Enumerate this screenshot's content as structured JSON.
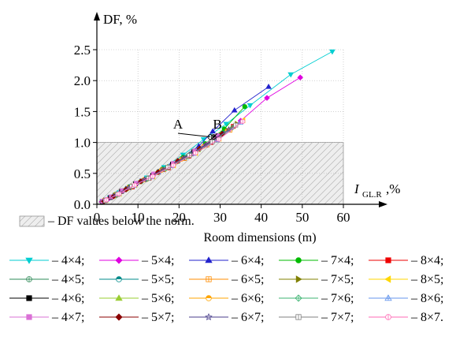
{
  "chart_data": {
    "type": "scatter",
    "y_axis_label": "DF, %",
    "x_axis_label_main": "I",
    "x_axis_label_sub": "GL.R",
    "x_axis_label_unit": ",%",
    "xlim": [
      0,
      60
    ],
    "ylim": [
      0,
      2.5
    ],
    "x_ticks": [
      "0",
      "10",
      "20",
      "30",
      "40",
      "50",
      "60"
    ],
    "y_ticks": [
      "0.0",
      "0.5",
      "1.0",
      "1.5",
      "2.0",
      "2.5"
    ],
    "norm_region": {
      "x_max": 60,
      "y_max": 1.0,
      "hatched": true
    },
    "annotations": [
      {
        "label": "A",
        "x": 27.6,
        "y": 1.09
      },
      {
        "label": "B",
        "x": 28.4,
        "y": 1.09
      }
    ],
    "norm_legend_text": "– DF values below the norm.",
    "legend_title": "Room dimensions (m)",
    "series": [
      {
        "name": "– 4×4;",
        "color": "#00ced1",
        "marker": "tri-down",
        "x": [
          1.4,
          3.2,
          5.5,
          8.5,
          12.2,
          16.4,
          21,
          26,
          31.5,
          37.3,
          47.2,
          57.3
        ],
        "y": [
          0.05,
          0.11,
          0.19,
          0.29,
          0.43,
          0.6,
          0.8,
          1.05,
          1.3,
          1.6,
          2.1,
          2.47
        ]
      },
      {
        "name": "– 5×4;",
        "color": "#e000e0",
        "marker": "diamond",
        "x": [
          1.2,
          3,
          5.8,
          9.2,
          13.4,
          18.2,
          23.4,
          29,
          35,
          41.4,
          49.5
        ],
        "y": [
          0.04,
          0.1,
          0.2,
          0.31,
          0.46,
          0.64,
          0.82,
          1.08,
          1.35,
          1.72,
          2.05
        ]
      },
      {
        "name": "– 6×4;",
        "color": "#2222cc",
        "marker": "tri-up",
        "x": [
          1.6,
          4,
          7,
          10.5,
          14.8,
          19.6,
          24.8,
          28.2,
          33.5,
          41.8
        ],
        "y": [
          0.06,
          0.14,
          0.25,
          0.37,
          0.52,
          0.7,
          0.94,
          1.18,
          1.52,
          1.9
        ]
      },
      {
        "name": "– 7×4;",
        "color": "#00bb00",
        "marker": "circle",
        "x": [
          1.8,
          4.5,
          7.8,
          11.6,
          16,
          21,
          26.4,
          31,
          36
        ],
        "y": [
          0.06,
          0.16,
          0.28,
          0.4,
          0.57,
          0.76,
          0.98,
          1.22,
          1.58
        ]
      },
      {
        "name": "– 8×4;",
        "color": "#ee0000",
        "marker": "square",
        "x": [
          2,
          5,
          8.6,
          12.7,
          17.4,
          22.4,
          27.8,
          33.2
        ],
        "y": [
          0.06,
          0.16,
          0.28,
          0.42,
          0.59,
          0.78,
          1,
          1.26
        ]
      },
      {
        "name": "– 4×5;",
        "color": "#2e8b57",
        "marker": "circle-plus",
        "x": [
          1.5,
          3.6,
          6.4,
          9.8,
          13.9,
          18.6,
          23.6,
          29.2
        ],
        "y": [
          0.05,
          0.12,
          0.22,
          0.34,
          0.49,
          0.66,
          0.86,
          1.1
        ]
      },
      {
        "name": "– 5×5;",
        "color": "#008b8b",
        "marker": "circle-half",
        "x": [
          1.7,
          4.2,
          7.2,
          10.8,
          15,
          19.8,
          25,
          30.6
        ],
        "y": [
          0.05,
          0.14,
          0.25,
          0.37,
          0.53,
          0.7,
          0.9,
          1.15
        ]
      },
      {
        "name": "– 6×5;",
        "color": "#ff8c00",
        "marker": "square-plus",
        "x": [
          1.9,
          4.6,
          7.9,
          11.8,
          16.3,
          21.3,
          26.8,
          32.4
        ],
        "y": [
          0.06,
          0.15,
          0.27,
          0.4,
          0.56,
          0.74,
          0.96,
          1.2
        ]
      },
      {
        "name": "– 7×5;",
        "color": "#808000",
        "marker": "tri-right",
        "x": [
          2.1,
          5.1,
          8.7,
          12.9,
          17.6,
          22.8,
          28.4,
          34.1
        ],
        "y": [
          0.06,
          0.16,
          0.29,
          0.42,
          0.6,
          0.79,
          1.02,
          1.3
        ]
      },
      {
        "name": "– 8×5;",
        "color": "#ffd700",
        "marker": "tri-left",
        "x": [
          2.3,
          5.5,
          9.3,
          13.7,
          18.7,
          24.1,
          29.8,
          35.6
        ],
        "y": [
          0.07,
          0.17,
          0.31,
          0.45,
          0.63,
          0.83,
          1.06,
          1.36
        ]
      },
      {
        "name": "– 4×6;",
        "color": "#000000",
        "marker": "square",
        "x": [
          1.3,
          3.3,
          6,
          9.4,
          13.6,
          18.4,
          23.6,
          28.8
        ],
        "y": [
          0.04,
          0.11,
          0.21,
          0.33,
          0.47,
          0.65,
          0.85,
          1.08
        ]
      },
      {
        "name": "– 5×6;",
        "color": "#9acd32",
        "marker": "tri-up",
        "x": [
          1.6,
          3.9,
          6.9,
          10.4,
          14.6,
          19.4,
          24.6,
          30.1
        ],
        "y": [
          0.05,
          0.13,
          0.24,
          0.36,
          0.51,
          0.69,
          0.88,
          1.13
        ]
      },
      {
        "name": "– 6×6;",
        "color": "#ffa500",
        "marker": "circle-half",
        "x": [
          1.8,
          4.4,
          7.6,
          11.3,
          15.7,
          20.6,
          26,
          31.7
        ],
        "y": [
          0.06,
          0.14,
          0.26,
          0.39,
          0.55,
          0.73,
          0.94,
          1.19
        ]
      },
      {
        "name": "– 7×6;",
        "color": "#3cb371",
        "marker": "diamond-plus",
        "x": [
          2,
          4.8,
          8.2,
          12.2,
          16.8,
          21.9,
          27.4,
          33
        ],
        "y": [
          0.06,
          0.15,
          0.28,
          0.41,
          0.58,
          0.77,
          0.99,
          1.24
        ]
      },
      {
        "name": "– 8×6;",
        "color": "#6495ed",
        "marker": "tri-up-plus",
        "x": [
          2.2,
          5.3,
          9,
          13.3,
          18.2,
          23.5,
          29.2,
          34.9
        ],
        "y": [
          0.07,
          0.17,
          0.3,
          0.44,
          0.62,
          0.82,
          1.04,
          1.32
        ]
      },
      {
        "name": "– 4×7;",
        "color": "#da70d6",
        "marker": "square",
        "x": [
          1.4,
          3.5,
          6.2,
          9.6,
          13.8,
          18.6,
          23.8,
          29.4
        ],
        "y": [
          0.05,
          0.12,
          0.22,
          0.34,
          0.49,
          0.66,
          0.86,
          1.11
        ]
      },
      {
        "name": "– 5×7;",
        "color": "#8b0000",
        "marker": "diamond",
        "x": [
          1.7,
          4.1,
          7.1,
          10.7,
          14.9,
          19.7,
          25,
          30.5
        ],
        "y": [
          0.05,
          0.13,
          0.24,
          0.37,
          0.52,
          0.7,
          0.9,
          1.14
        ]
      },
      {
        "name": "– 6×7;",
        "color": "#483d8b",
        "marker": "star",
        "x": [
          1.9,
          4.5,
          7.8,
          11.6,
          16.1,
          21.1,
          26.5,
          32.1
        ],
        "y": [
          0.06,
          0.15,
          0.27,
          0.4,
          0.56,
          0.75,
          0.96,
          1.21
        ]
      },
      {
        "name": "– 7×7;",
        "color": "#808080",
        "marker": "square-line",
        "x": [
          2.1,
          5,
          8.5,
          12.6,
          17.3,
          22.5,
          28.1,
          33.8
        ],
        "y": [
          0.06,
          0.16,
          0.29,
          0.42,
          0.6,
          0.79,
          1.01,
          1.28
        ]
      },
      {
        "name": "– 8×7.",
        "color": "#ff69b4",
        "marker": "circle-line",
        "x": [
          2.3,
          5.4,
          9.2,
          13.6,
          18.6,
          24,
          29.7,
          35.5
        ],
        "y": [
          0.07,
          0.17,
          0.31,
          0.45,
          0.63,
          0.83,
          1.05,
          1.34
        ]
      }
    ]
  }
}
